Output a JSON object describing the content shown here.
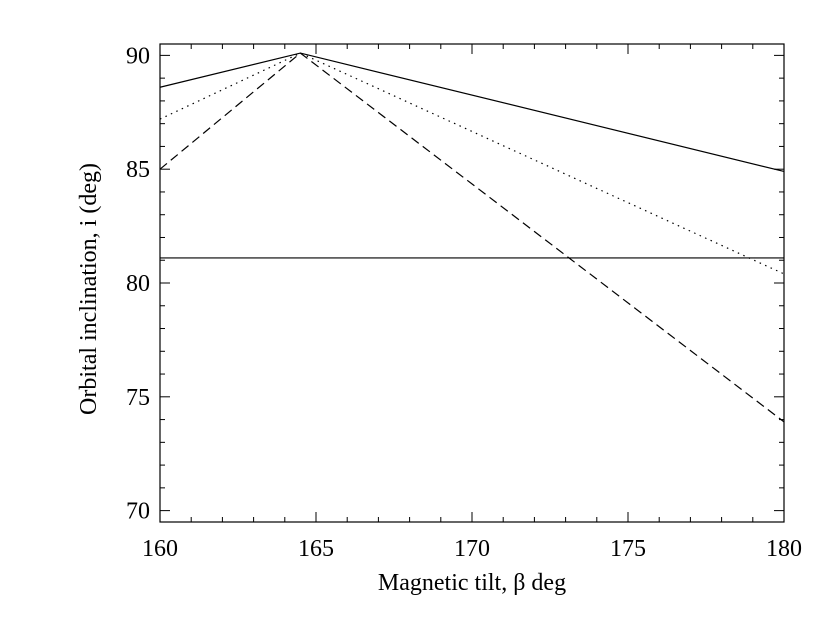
{
  "chart_data": {
    "type": "line",
    "title": "",
    "xlabel": "Magnetic tilt, β deg",
    "ylabel": "Orbital inclination, i  (deg)",
    "xlim": [
      160,
      180
    ],
    "ylim": [
      69.5,
      90.5
    ],
    "xticks": [
      160,
      165,
      170,
      175,
      180
    ],
    "yticks": [
      70,
      75,
      80,
      85,
      90
    ],
    "grid": false,
    "legend": "none",
    "series": [
      {
        "style": "solid",
        "x": [
          160,
          164.5,
          180
        ],
        "y": [
          88.6,
          90.1,
          84.9
        ]
      },
      {
        "style": "dotted",
        "x": [
          160,
          164.5,
          180
        ],
        "y": [
          87.2,
          90.1,
          80.4
        ]
      },
      {
        "style": "dashed",
        "x": [
          160,
          164.5,
          180
        ],
        "y": [
          85.0,
          90.1,
          73.9
        ]
      },
      {
        "style": "solid",
        "x": [
          160,
          180
        ],
        "y": [
          81.1,
          81.1
        ]
      }
    ]
  }
}
